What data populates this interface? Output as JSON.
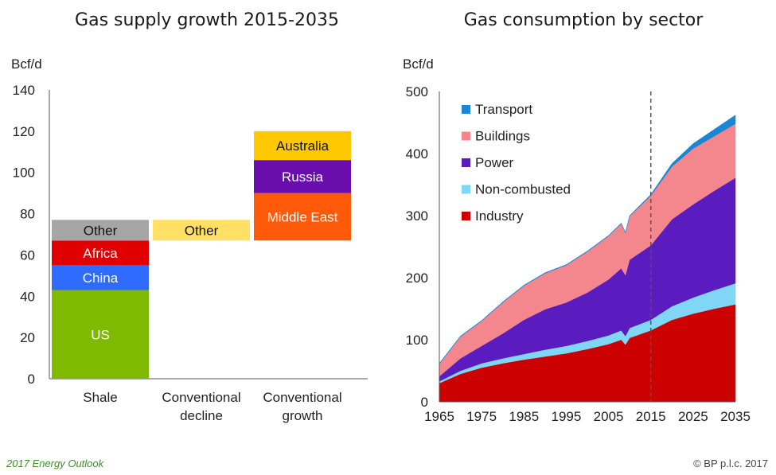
{
  "chart_data": [
    {
      "type": "stacked-bar",
      "title": "Gas supply growth 2015-2035",
      "ylabel": "Bcf/d",
      "ylim": [
        0,
        140
      ],
      "yticks": [
        0,
        20,
        40,
        60,
        80,
        100,
        120,
        140
      ],
      "categories": [
        {
          "name": "shale",
          "label_lines": [
            "Shale"
          ]
        },
        {
          "name": "conventional-decline",
          "label_lines": [
            "Conventional",
            "decline"
          ]
        },
        {
          "name": "conventional-growth",
          "label_lines": [
            "Conventional",
            "growth"
          ]
        }
      ],
      "segments": [
        {
          "category": 0,
          "label": "US",
          "start": 0,
          "end": 43,
          "color": "#7fba00",
          "text_color": "#ffffff"
        },
        {
          "category": 0,
          "label": "China",
          "start": 43,
          "end": 55,
          "color": "#2f6bff",
          "text_color": "#ffffff"
        },
        {
          "category": 0,
          "label": "Africa",
          "start": 55,
          "end": 67,
          "color": "#e00000",
          "text_color": "#ffffff"
        },
        {
          "category": 0,
          "label": "Other",
          "start": 67,
          "end": 77,
          "color": "#a6a6a6",
          "text_color": "#111111"
        },
        {
          "category": 1,
          "label": "Other",
          "start": 67,
          "end": 77,
          "color": "#ffe066",
          "text_color": "#111111"
        },
        {
          "category": 2,
          "label": "Middle East",
          "start": 67,
          "end": 90,
          "color": "#ff5a0a",
          "text_color": "#ffffff"
        },
        {
          "category": 2,
          "label": "Russia",
          "start": 90,
          "end": 106,
          "color": "#6a0dad",
          "text_color": "#ffffff"
        },
        {
          "category": 2,
          "label": "Australia",
          "start": 106,
          "end": 120,
          "color": "#ffc800",
          "text_color": "#111111"
        }
      ]
    },
    {
      "type": "area",
      "title": "Gas consumption by sector",
      "ylabel": "Bcf/d",
      "ylim": [
        0,
        500
      ],
      "xlim": [
        1965,
        2035
      ],
      "yticks": [
        0,
        100,
        200,
        300,
        400,
        500
      ],
      "xticks": [
        1965,
        1975,
        1985,
        1995,
        2005,
        2015,
        2025,
        2035
      ],
      "divider_year": 2015,
      "x": [
        1965,
        1970,
        1975,
        1980,
        1985,
        1990,
        1995,
        2000,
        2005,
        2008,
        2009,
        2010,
        2015,
        2020,
        2025,
        2030,
        2035
      ],
      "series": [
        {
          "name": "Industry",
          "color": "#cc0000",
          "values": [
            30,
            45,
            55,
            62,
            68,
            73,
            78,
            85,
            93,
            100,
            92,
            103,
            115,
            132,
            142,
            150,
            157
          ]
        },
        {
          "name": "Non-combusted",
          "color": "#7fd6f5",
          "values": [
            3,
            5,
            7,
            8,
            9,
            11,
            12,
            13,
            14,
            15,
            14,
            16,
            17,
            22,
            26,
            30,
            34
          ]
        },
        {
          "name": "Power",
          "color": "#5a1bbf",
          "values": [
            8,
            20,
            28,
            40,
            55,
            65,
            70,
            78,
            90,
            100,
            98,
            110,
            120,
            140,
            150,
            160,
            170
          ]
        },
        {
          "name": "Buildings",
          "color": "#f4878e",
          "values": [
            20,
            35,
            40,
            50,
            55,
            58,
            60,
            66,
            70,
            72,
            68,
            70,
            80,
            85,
            90,
            88,
            87
          ]
        },
        {
          "name": "Transport",
          "color": "#1a86d6",
          "values": [
            1,
            1,
            1,
            1,
            1,
            1,
            1,
            1,
            1,
            1,
            1,
            1,
            2,
            5,
            8,
            11,
            14
          ]
        }
      ],
      "legend_order": [
        "Transport",
        "Buildings",
        "Power",
        "Non-combusted",
        "Industry"
      ],
      "legend_position": "top-left"
    }
  ],
  "footer": {
    "source": "2017 Energy Outlook",
    "copyright": "© BP p.l.c. 2017"
  }
}
